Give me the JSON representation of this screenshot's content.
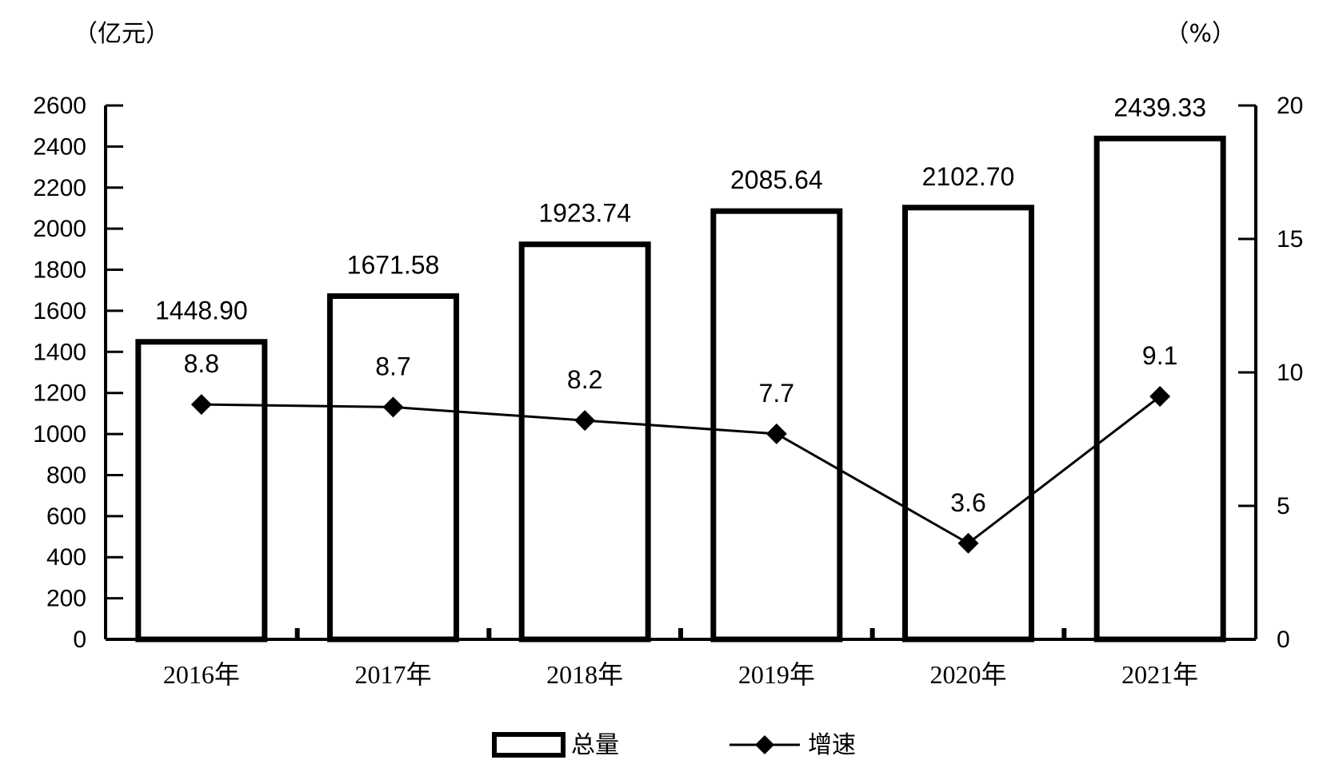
{
  "chart_data": {
    "type": "bar",
    "categories": [
      "2016年",
      "2017年",
      "2018年",
      "2019年",
      "2020年",
      "2021年"
    ],
    "series": [
      {
        "name": "总量",
        "type": "bar",
        "axis": "left",
        "values": [
          1448.9,
          1671.58,
          1923.74,
          2085.64,
          2102.7,
          2439.33
        ],
        "labels": [
          "1448.90",
          "1671.58",
          "1923.74",
          "2085.64",
          "2102.70",
          "2439.33"
        ]
      },
      {
        "name": "增速",
        "type": "line",
        "axis": "right",
        "values": [
          8.8,
          8.7,
          8.2,
          7.7,
          3.6,
          9.1
        ],
        "labels": [
          "8.8",
          "8.7",
          "8.2",
          "7.7",
          "3.6",
          "9.1"
        ]
      }
    ],
    "y_left": {
      "unit": "（亿元）",
      "ylim": [
        0,
        2600
      ],
      "ticks": [
        "0",
        "200",
        "400",
        "600",
        "800",
        "1000",
        "1200",
        "1400",
        "1600",
        "1800",
        "2000",
        "2200",
        "2400",
        "2600"
      ]
    },
    "y_right": {
      "unit": "（%）",
      "ylim": [
        0,
        20
      ],
      "ticks": [
        "0",
        "5",
        "10",
        "15",
        "20"
      ]
    },
    "grid": false,
    "legend_position": "bottom-center",
    "colors": {
      "bar_fill": "#ffffff",
      "bar_stroke": "#000000",
      "line": "#000000",
      "marker": "#000000"
    }
  }
}
